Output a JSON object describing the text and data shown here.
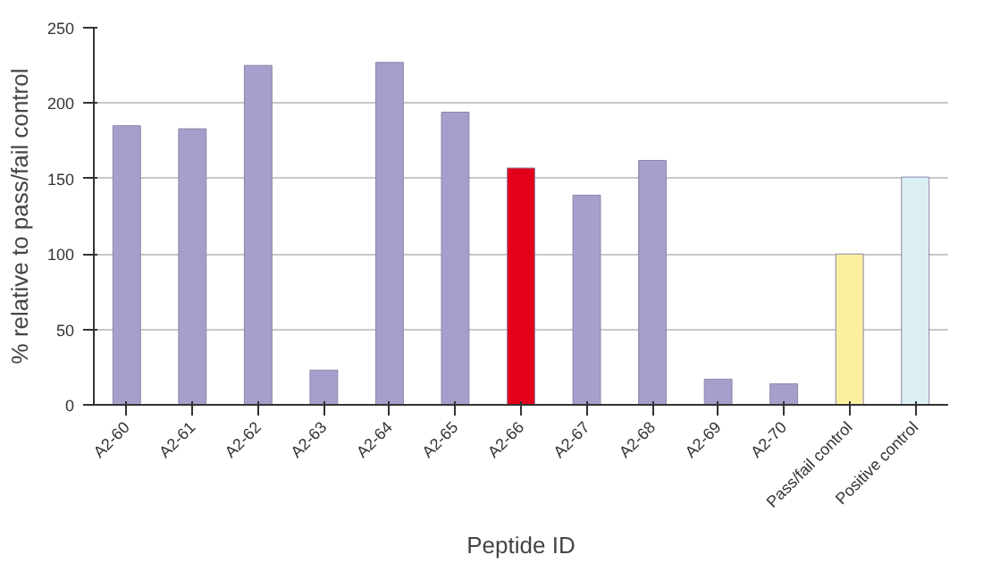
{
  "chart_data": {
    "type": "bar",
    "xlabel": "Peptide ID",
    "ylabel": "% relative to pass/fail control",
    "categories": [
      "A2-60",
      "A2-61",
      "A2-62",
      "A2-63",
      "A2-64",
      "A2-65",
      "A2-66",
      "A2-67",
      "A2-68",
      "A2-69",
      "A2-70",
      "Pass/fail control",
      "Positive control"
    ],
    "values": [
      185,
      183,
      225,
      23,
      227,
      194,
      157,
      139,
      162,
      17,
      14,
      100,
      151
    ],
    "colors": [
      "#a59fcb",
      "#a59fcb",
      "#a59fcb",
      "#a59fcb",
      "#a59fcb",
      "#a59fcb",
      "#e2001a",
      "#a59fcb",
      "#a59fcb",
      "#a59fcb",
      "#a59fcb",
      "#fcf0a0",
      "#dcf0f4"
    ],
    "ylim": [
      0,
      250
    ],
    "yticks": [
      0,
      50,
      100,
      150,
      200,
      250
    ],
    "grid": "y"
  }
}
